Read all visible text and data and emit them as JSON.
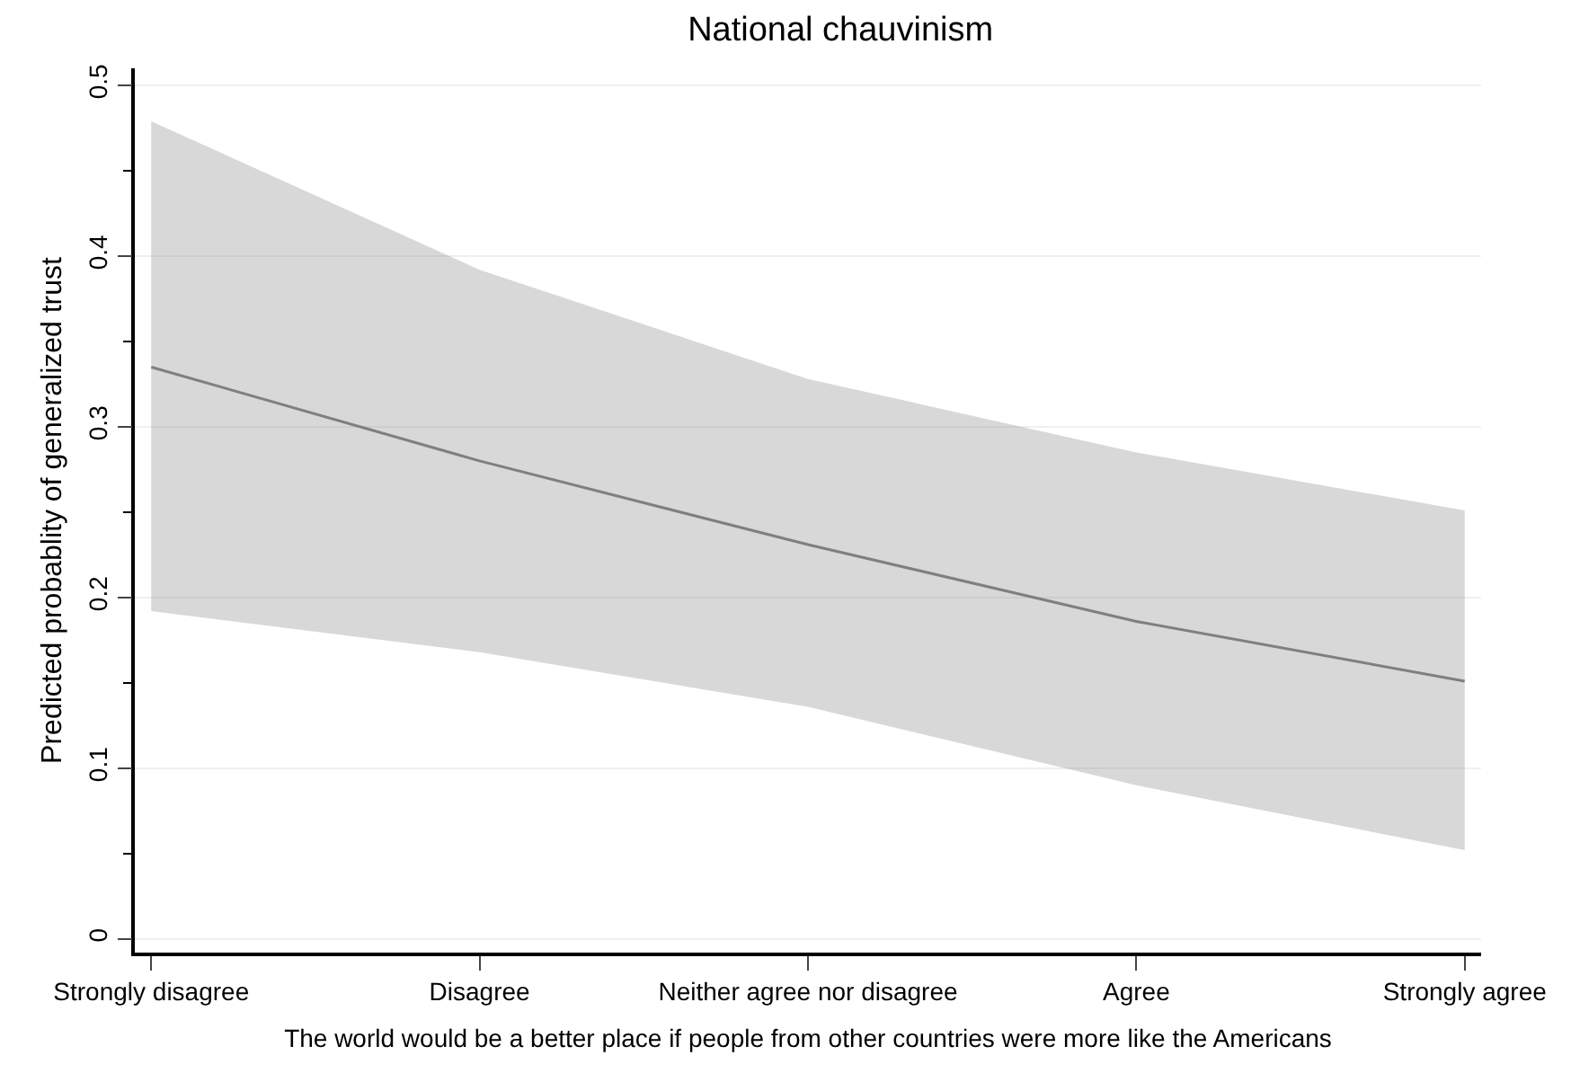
{
  "chart_data": {
    "type": "line",
    "title": "National chauvinism",
    "xlabel": "The world would be a better place if people from other countries were more like the Americans",
    "ylabel": "Predicted probablity of generalized trust",
    "categories": [
      "Strongly disagree",
      "Disagree",
      "Neither agree nor disagree",
      "Agree",
      "Strongly agree"
    ],
    "series": [
      {
        "color": "#7f7f7f",
        "values": [
          0.335,
          0.28,
          0.231,
          0.186,
          0.151
        ],
        "lower": [
          0.192,
          0.168,
          0.136,
          0.09,
          0.052
        ],
        "upper": [
          0.479,
          0.392,
          0.328,
          0.285,
          0.251
        ]
      }
    ],
    "ylim": [
      -0.008,
      0.51
    ],
    "yticks": [
      0,
      {
        "value": 0.05,
        "label": null
      },
      0.1,
      {
        "value": 0.15,
        "label": null
      },
      0.2,
      {
        "value": 0.25,
        "label": null
      },
      0.3,
      {
        "value": 0.35,
        "label": null
      },
      0.4,
      {
        "value": 0.45,
        "label": null
      },
      0.5
    ],
    "grid": "y",
    "marker": "none",
    "line_style": "solid"
  }
}
